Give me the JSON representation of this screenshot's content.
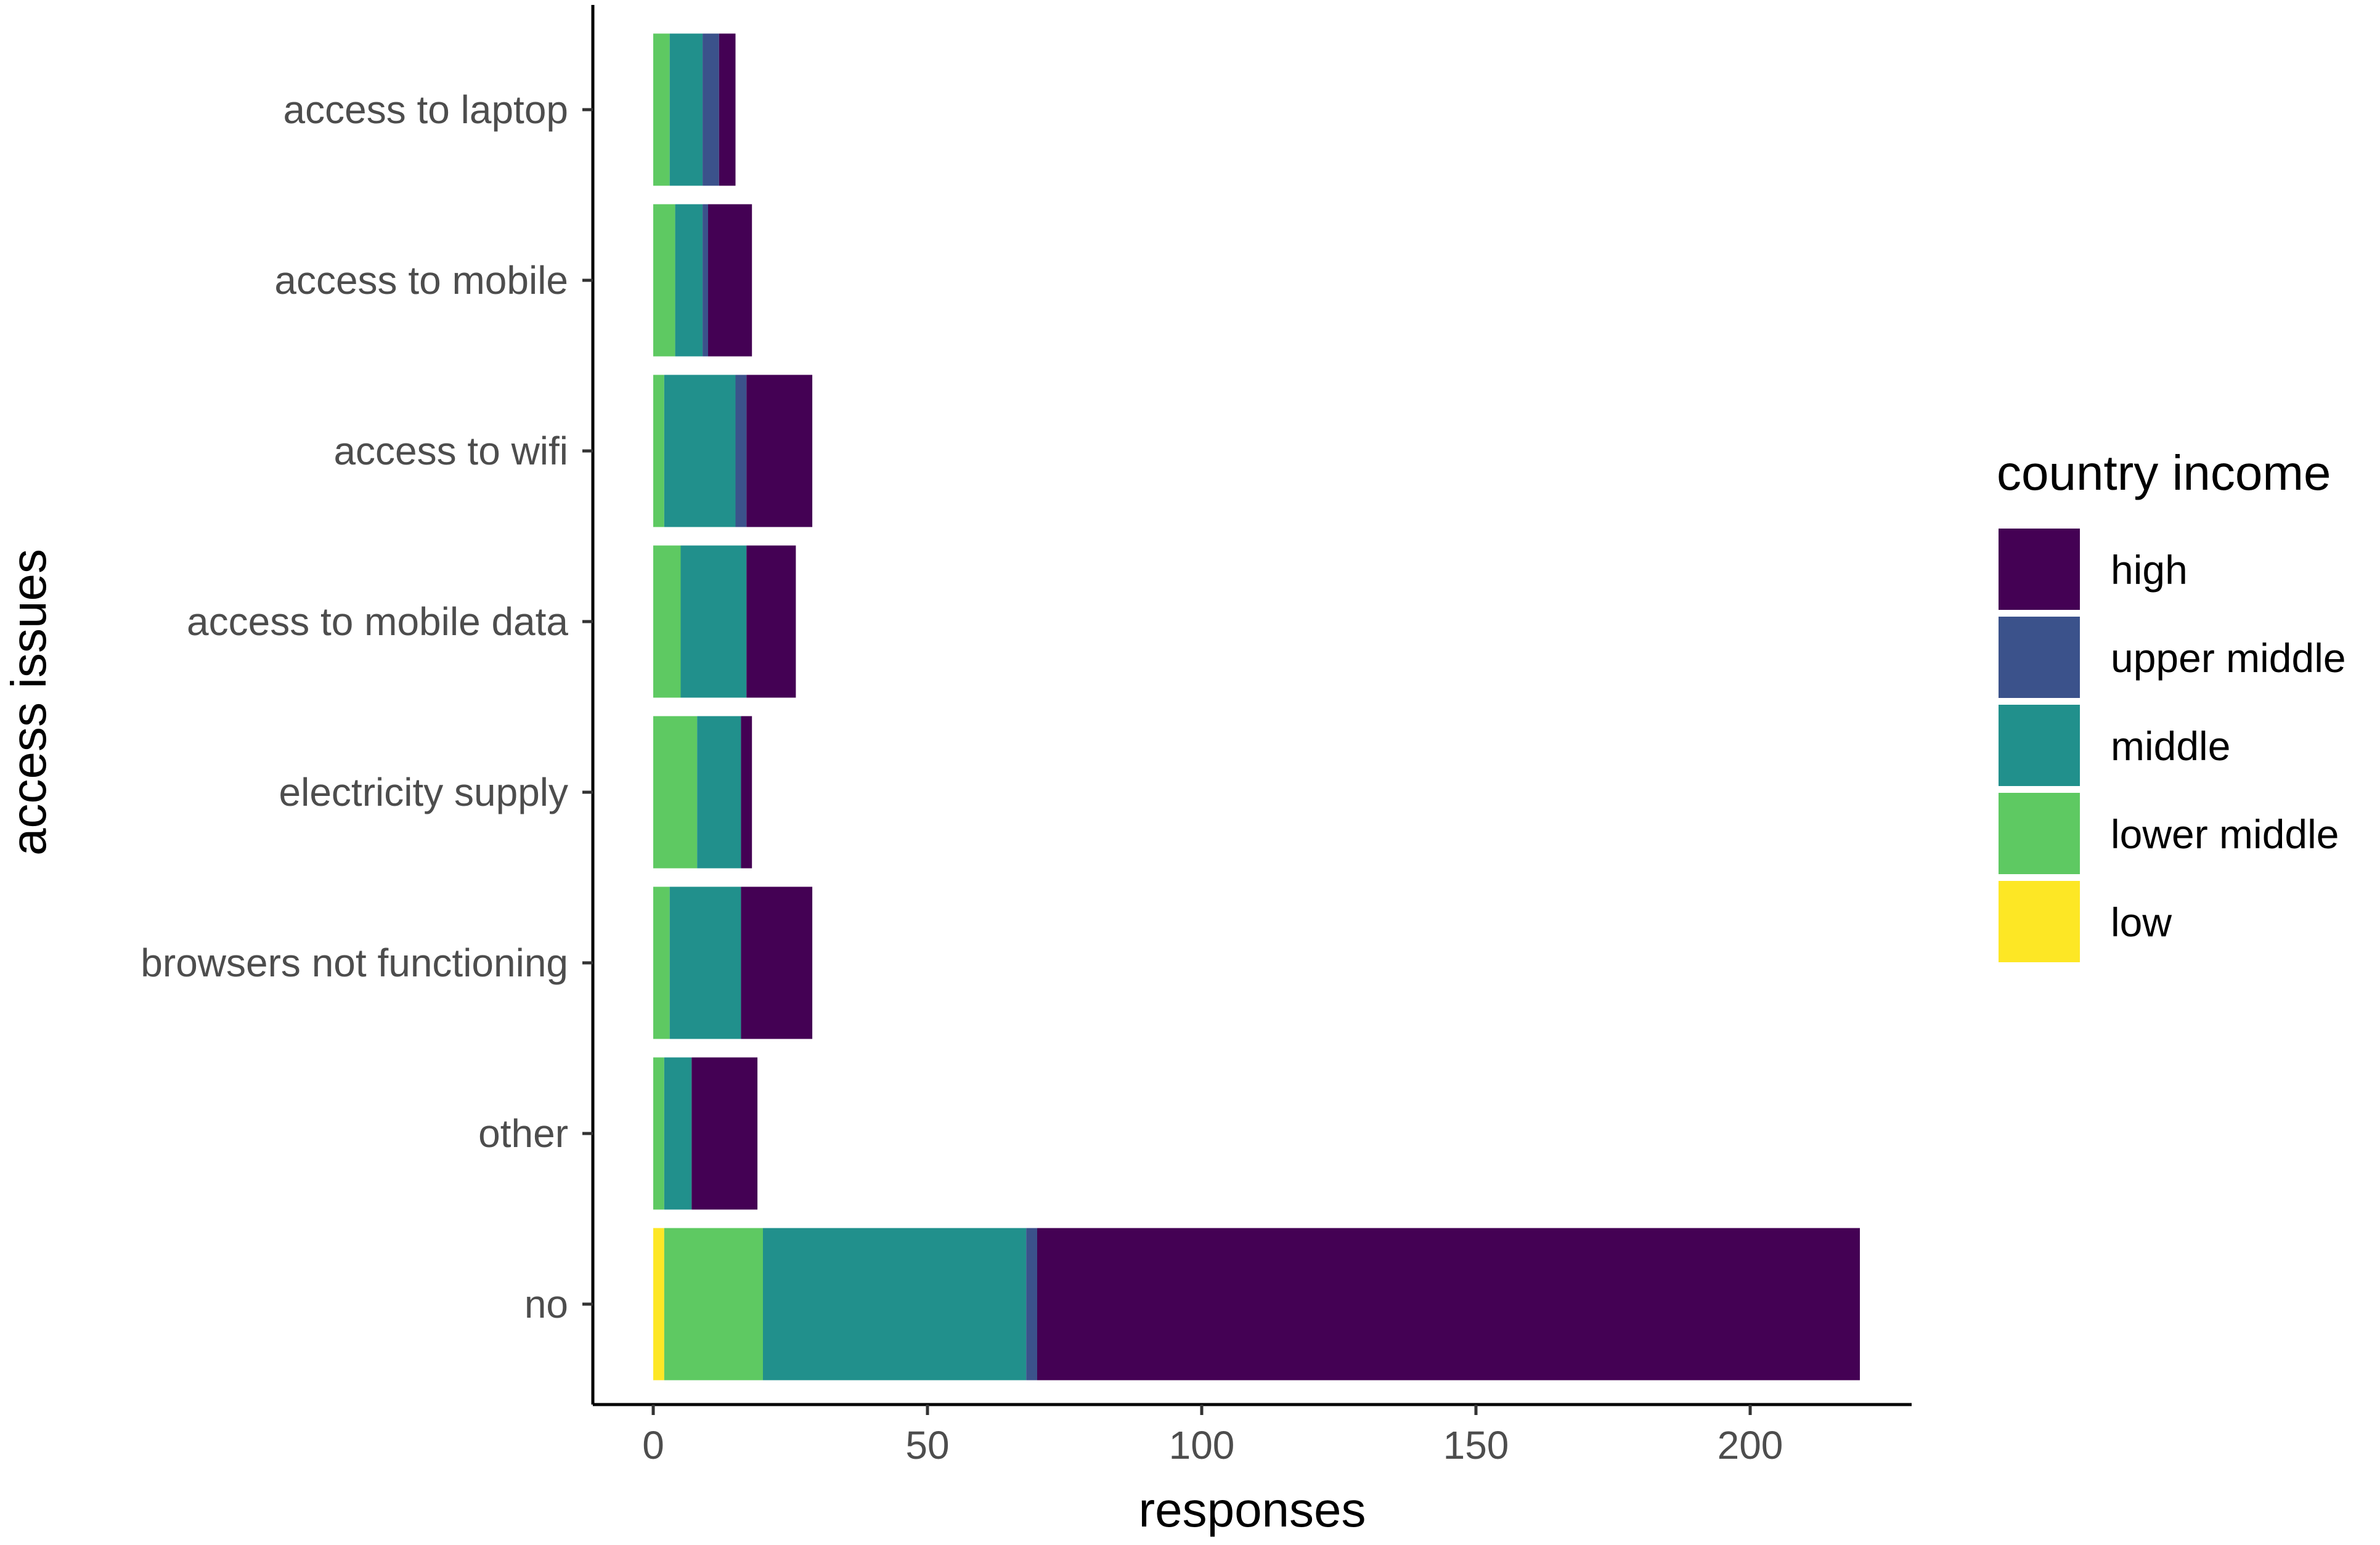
{
  "chart_data": {
    "type": "bar",
    "orientation": "horizontal",
    "stacked": true,
    "xlabel": "responses",
    "ylabel": "access issues",
    "xlim": [
      -11,
      230
    ],
    "xticks": [
      0,
      50,
      100,
      150,
      200
    ],
    "grid": false,
    "legend_title": "country income",
    "legend_position": "right",
    "categories": [
      "access to laptop",
      "access to mobile",
      "access to wifi",
      "access to mobile data",
      "electricity supply",
      "browsers not functioning",
      "other",
      "no"
    ],
    "series": [
      {
        "name": "low",
        "color": "#FDE725",
        "values": [
          0,
          0,
          0,
          0,
          0,
          0,
          0,
          2
        ]
      },
      {
        "name": "lower middle",
        "color": "#5EC962",
        "values": [
          3,
          4,
          2,
          5,
          8,
          3,
          2,
          18
        ]
      },
      {
        "name": "middle",
        "color": "#21908C",
        "values": [
          6,
          5,
          13,
          12,
          8,
          13,
          5,
          48
        ]
      },
      {
        "name": "upper middle",
        "color": "#3B528B",
        "values": [
          3,
          1,
          2,
          0,
          0,
          0,
          0,
          2
        ]
      },
      {
        "name": "high",
        "color": "#440154",
        "values": [
          3,
          8,
          12,
          9,
          2,
          13,
          12,
          150
        ]
      }
    ],
    "legend_order": [
      "high",
      "upper middle",
      "middle",
      "lower middle",
      "low"
    ]
  }
}
